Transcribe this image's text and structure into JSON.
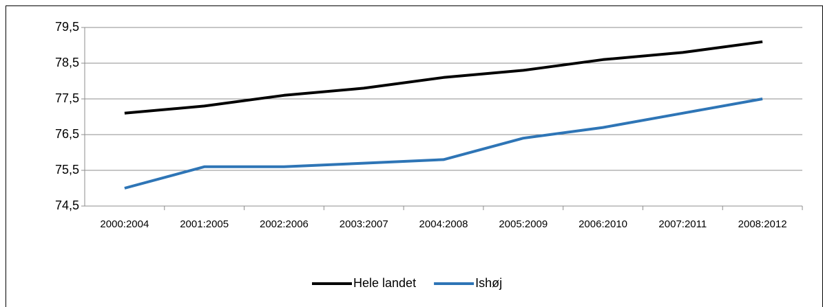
{
  "chart_data": {
    "type": "line",
    "categories": [
      "2000:2004",
      "2001:2005",
      "2002:2006",
      "2003:2007",
      "2004:2008",
      "2005:2009",
      "2006:2010",
      "2007:2011",
      "2008:2012"
    ],
    "series": [
      {
        "name": "Hele landet",
        "color": "#000000",
        "values": [
          77.1,
          77.3,
          77.6,
          77.8,
          78.1,
          78.3,
          78.6,
          78.8,
          79.1
        ]
      },
      {
        "name": "Ishøj",
        "color": "#2e75b6",
        "values": [
          75.0,
          75.6,
          75.6,
          75.7,
          75.8,
          76.4,
          76.7,
          77.1,
          77.5
        ]
      }
    ],
    "ylim": [
      74.5,
      79.5
    ],
    "yticks": [
      {
        "value": 74.5,
        "label": "74,5"
      },
      {
        "value": 75.5,
        "label": "75,5"
      },
      {
        "value": 76.5,
        "label": "76,5"
      },
      {
        "value": 77.5,
        "label": "77,5"
      },
      {
        "value": 78.5,
        "label": "78,5"
      },
      {
        "value": 79.5,
        "label": "79,5"
      }
    ],
    "grid": true,
    "legend": "bottom"
  }
}
